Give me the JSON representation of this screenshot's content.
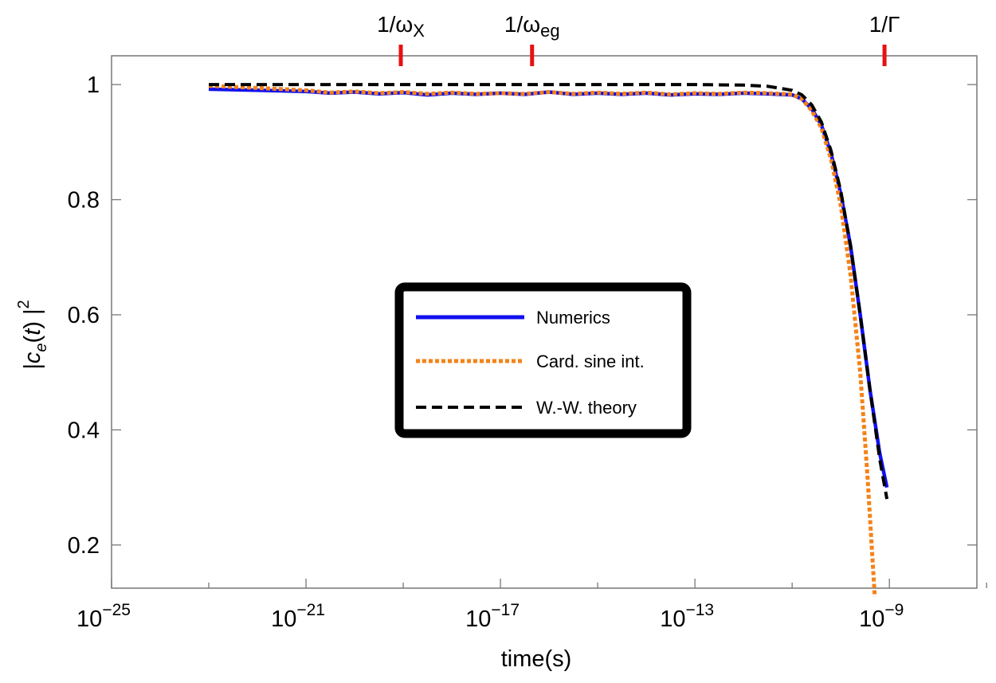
{
  "chart_data": {
    "type": "line",
    "xscale": "log10",
    "xlabel": "time(s)",
    "ylabel": "|c_e(t)|^2",
    "xlim_log10": [
      -25,
      -7.2
    ],
    "ylim": [
      0.125,
      1.05
    ],
    "x_ticks": [
      {
        "exp": -25,
        "base": "10",
        "sup": "−25"
      },
      {
        "exp": -21,
        "base": "10",
        "sup": "−21"
      },
      {
        "exp": -17,
        "base": "10",
        "sup": "−17"
      },
      {
        "exp": -13,
        "base": "10",
        "sup": "−13"
      },
      {
        "exp": -9,
        "base": "10",
        "sup": "−9"
      }
    ],
    "y_ticks": [
      {
        "value": 0.2,
        "label": "0.2"
      },
      {
        "value": 0.4,
        "label": "0.4"
      },
      {
        "value": 0.6,
        "label": "0.6"
      },
      {
        "value": 0.8,
        "label": "0.8"
      },
      {
        "value": 1.0,
        "label": "1"
      }
    ],
    "top_markers": [
      {
        "log10_t": -19.05,
        "main": "1/ω",
        "sub": "X"
      },
      {
        "log10_t": -16.35,
        "main": "1/ω",
        "sub": "eg"
      },
      {
        "log10_t": -9.1,
        "main": "1/Γ",
        "sub": ""
      }
    ],
    "series": [
      {
        "name": "Numerics",
        "color": "#1010ee",
        "style": "solid",
        "points": [
          [
            -23.0,
            0.992
          ],
          [
            -22.0,
            0.99
          ],
          [
            -21.0,
            0.988
          ],
          [
            -20.5,
            0.985
          ],
          [
            -20.0,
            0.987
          ],
          [
            -19.5,
            0.984
          ],
          [
            -19.0,
            0.986
          ],
          [
            -18.5,
            0.982
          ],
          [
            -18.0,
            0.985
          ],
          [
            -17.5,
            0.983
          ],
          [
            -17.0,
            0.985
          ],
          [
            -16.5,
            0.983
          ],
          [
            -16.0,
            0.987
          ],
          [
            -15.5,
            0.983
          ],
          [
            -15.0,
            0.985
          ],
          [
            -14.5,
            0.983
          ],
          [
            -14.0,
            0.985
          ],
          [
            -13.5,
            0.982
          ],
          [
            -13.0,
            0.984
          ],
          [
            -12.5,
            0.983
          ],
          [
            -12.0,
            0.985
          ],
          [
            -11.5,
            0.984
          ],
          [
            -11.0,
            0.982
          ],
          [
            -10.8,
            0.975
          ],
          [
            -10.6,
            0.958
          ],
          [
            -10.4,
            0.93
          ],
          [
            -10.2,
            0.88
          ],
          [
            -10.0,
            0.81
          ],
          [
            -9.8,
            0.72
          ],
          [
            -9.6,
            0.6
          ],
          [
            -9.4,
            0.47
          ],
          [
            -9.2,
            0.36
          ],
          [
            -9.05,
            0.3
          ]
        ]
      },
      {
        "name": "Card. sine int.",
        "color": "#f58218",
        "style": "dotted",
        "points": [
          [
            -23.0,
            0.998
          ],
          [
            -22.0,
            0.994
          ],
          [
            -21.0,
            0.99
          ],
          [
            -20.5,
            0.986
          ],
          [
            -20.0,
            0.988
          ],
          [
            -19.5,
            0.985
          ],
          [
            -19.0,
            0.987
          ],
          [
            -18.5,
            0.984
          ],
          [
            -18.0,
            0.986
          ],
          [
            -17.5,
            0.984
          ],
          [
            -17.0,
            0.985
          ],
          [
            -16.5,
            0.984
          ],
          [
            -16.0,
            0.987
          ],
          [
            -15.5,
            0.984
          ],
          [
            -15.0,
            0.986
          ],
          [
            -14.5,
            0.984
          ],
          [
            -14.0,
            0.986
          ],
          [
            -13.5,
            0.983
          ],
          [
            -13.0,
            0.985
          ],
          [
            -12.5,
            0.984
          ],
          [
            -12.0,
            0.986
          ],
          [
            -11.5,
            0.985
          ],
          [
            -11.0,
            0.983
          ],
          [
            -10.8,
            0.975
          ],
          [
            -10.6,
            0.955
          ],
          [
            -10.4,
            0.925
          ],
          [
            -10.2,
            0.87
          ],
          [
            -10.0,
            0.79
          ],
          [
            -9.8,
            0.67
          ],
          [
            -9.6,
            0.5
          ],
          [
            -9.45,
            0.32
          ],
          [
            -9.35,
            0.18
          ],
          [
            -9.3,
            0.11
          ]
        ]
      },
      {
        "name": "W.-W. theory",
        "color": "#000000",
        "style": "dashed",
        "points": [
          [
            -23.0,
            1.0
          ],
          [
            -21.0,
            1.0
          ],
          [
            -19.0,
            1.0
          ],
          [
            -17.0,
            1.0
          ],
          [
            -15.0,
            1.0
          ],
          [
            -13.0,
            1.0
          ],
          [
            -12.0,
            0.999
          ],
          [
            -11.5,
            0.997
          ],
          [
            -11.0,
            0.99
          ],
          [
            -10.8,
            0.982
          ],
          [
            -10.6,
            0.965
          ],
          [
            -10.4,
            0.935
          ],
          [
            -10.2,
            0.885
          ],
          [
            -10.0,
            0.815
          ],
          [
            -9.8,
            0.72
          ],
          [
            -9.6,
            0.6
          ],
          [
            -9.4,
            0.47
          ],
          [
            -9.2,
            0.35
          ],
          [
            -9.05,
            0.28
          ]
        ]
      }
    ],
    "legend": {
      "placement": "center",
      "entries": [
        "Numerics",
        "Card. sine int.",
        "W.-W. theory"
      ]
    }
  }
}
